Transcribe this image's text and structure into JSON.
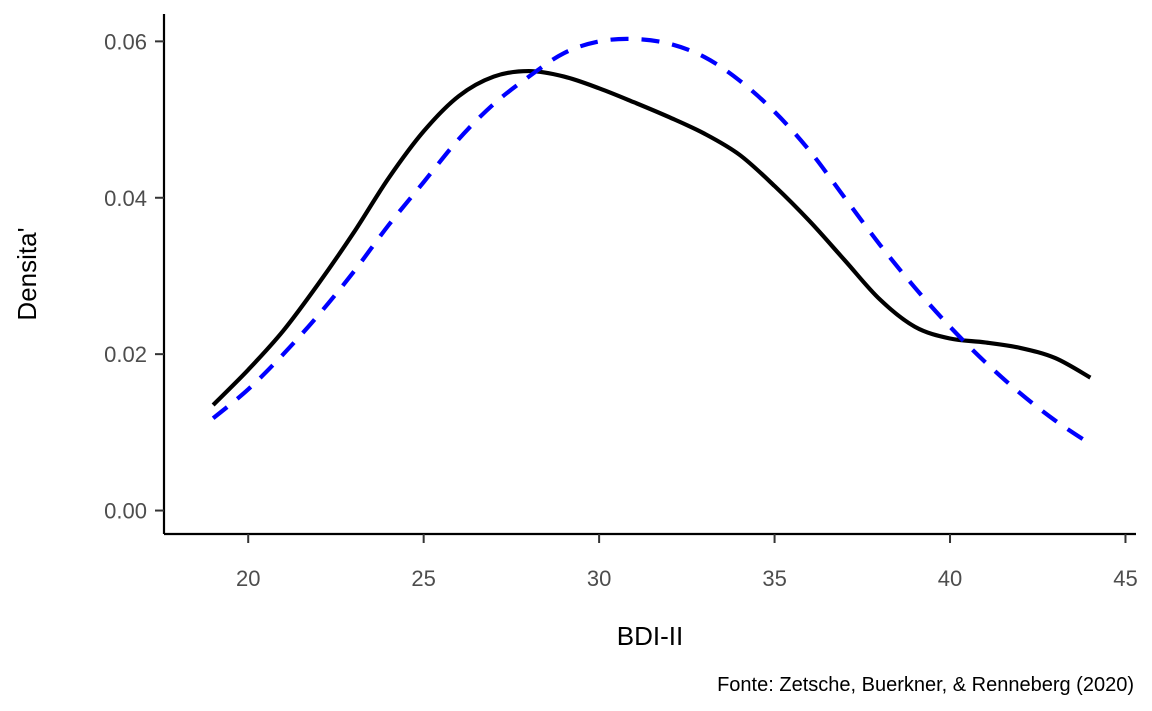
{
  "chart_data": {
    "type": "line",
    "xlabel": "BDI-II",
    "ylabel": "Densita'",
    "caption": "Fonte: Zetsche, Buerkner, & Renneberg (2020)",
    "xlim": [
      17.6,
      45.3
    ],
    "ylim": [
      -0.003,
      0.0635
    ],
    "xticks": [
      20,
      25,
      30,
      35,
      40,
      45
    ],
    "xtick_labels": [
      "20",
      "25",
      "30",
      "35",
      "40",
      "45"
    ],
    "yticks": [
      0,
      0.02,
      0.04,
      0.06
    ],
    "ytick_labels": [
      "0.00",
      "0.02",
      "0.04",
      "0.06"
    ],
    "grid": false,
    "legend": false,
    "series": [
      {
        "style": "solid",
        "color": "#000000",
        "x": [
          19,
          20,
          21,
          22,
          23,
          24,
          25,
          26,
          27,
          28,
          29,
          30,
          31,
          32,
          33,
          34,
          35,
          36,
          37,
          38,
          39,
          40,
          41,
          42,
          43,
          44
        ],
        "y": [
          0.0135,
          0.018,
          0.023,
          0.029,
          0.0355,
          0.0425,
          0.0485,
          0.053,
          0.0555,
          0.0562,
          0.0555,
          0.054,
          0.0522,
          0.0503,
          0.0482,
          0.0455,
          0.0415,
          0.037,
          0.032,
          0.027,
          0.0235,
          0.022,
          0.0215,
          0.0208,
          0.0195,
          0.017
        ]
      },
      {
        "style": "dashed",
        "color": "#0000ff",
        "x": [
          19,
          20,
          21,
          22,
          23,
          24,
          25,
          26,
          27,
          28,
          29,
          30,
          31,
          32,
          33,
          34,
          35,
          36,
          37,
          38,
          39,
          40,
          41,
          42,
          43,
          44
        ],
        "y": [
          0.0118,
          0.0155,
          0.02,
          0.025,
          0.0305,
          0.0365,
          0.042,
          0.0475,
          0.052,
          0.0555,
          0.0585,
          0.06,
          0.0603,
          0.0597,
          0.058,
          0.055,
          0.051,
          0.046,
          0.04,
          0.034,
          0.0285,
          0.0235,
          0.019,
          0.015,
          0.0115,
          0.0085
        ]
      }
    ]
  }
}
